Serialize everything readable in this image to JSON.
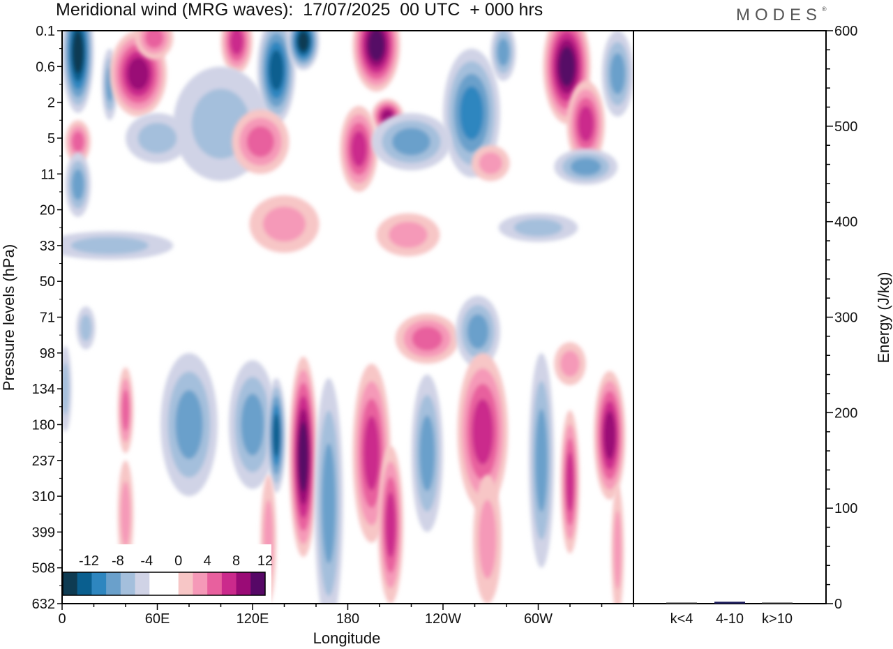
{
  "brand": "MODES",
  "brand_mark": "®",
  "chart_data": {
    "type": "heatmap",
    "title": "Meridional wind (MRG waves):  17/07/2025  00 UTC  + 000 hrs",
    "xlabel": "Longitude",
    "ylabel": "Pressure levels (hPa)",
    "x_tick_labels": [
      "0",
      "60E",
      "120E",
      "180",
      "120W",
      "60W"
    ],
    "x_ticks_deg": [
      0,
      60,
      120,
      180,
      240,
      300
    ],
    "x_range_deg": [
      0,
      360
    ],
    "y_tick_labels": [
      "0.1",
      "0.6",
      "2",
      "5",
      "11",
      "20",
      "33",
      "50",
      "71",
      "98",
      "134",
      "180",
      "237",
      "310",
      "399",
      "508",
      "632"
    ],
    "colorbar": {
      "labels": [
        "-12",
        "-8",
        "-4",
        "0",
        "4",
        "8",
        "12"
      ],
      "colors": [
        "#0e3b52",
        "#0a5f8f",
        "#2e86bf",
        "#6aa0cb",
        "#a4bfdc",
        "#d0d3e6",
        "#ffffff",
        "#ffffff",
        "#f7c6c6",
        "#f599b8",
        "#e8609e",
        "#cb2a8c",
        "#9a0b76",
        "#560866"
      ]
    },
    "energy_axis": {
      "label": "Energy (J/kg)",
      "tick_labels": [
        "0",
        "100",
        "200",
        "300",
        "400",
        "500",
        "600"
      ],
      "ylim": [
        0,
        600
      ],
      "categories": [
        "k<4",
        "4-10",
        "k>10"
      ],
      "values": [
        0.5,
        2,
        0.5
      ]
    },
    "anomalies": [
      {
        "lon": 10,
        "lev": 0.6,
        "rx": 10,
        "ry": 1.7,
        "v": -14
      },
      {
        "lon": 30,
        "lev": 1.5,
        "rx": 5,
        "ry": 1,
        "v": -6
      },
      {
        "lon": 48,
        "lev": 1.2,
        "rx": 18,
        "ry": 1.2,
        "v": 10
      },
      {
        "lon": 58,
        "lev": 0.2,
        "rx": 12,
        "ry": 0.6,
        "v": 6
      },
      {
        "lon": 110,
        "lev": 0.3,
        "rx": 10,
        "ry": 0.9,
        "v": 8
      },
      {
        "lon": 100,
        "lev": 2.6,
        "rx": 30,
        "ry": 1.6,
        "v": -4
      },
      {
        "lon": 135,
        "lev": 1.1,
        "rx": 12,
        "ry": 1.5,
        "v": -12
      },
      {
        "lon": 152,
        "lev": 0.3,
        "rx": 10,
        "ry": 0.8,
        "v": -14
      },
      {
        "lon": 198,
        "lev": 0.4,
        "rx": 15,
        "ry": 1.3,
        "v": 14
      },
      {
        "lon": 205,
        "lev": 2.4,
        "rx": 10,
        "ry": 0.5,
        "v": 12
      },
      {
        "lon": 258,
        "lev": 2.3,
        "rx": 18,
        "ry": 1.8,
        "v": -9
      },
      {
        "lon": 278,
        "lev": 0.6,
        "rx": 8,
        "ry": 0.8,
        "v": -6
      },
      {
        "lon": 318,
        "lev": 1,
        "rx": 15,
        "ry": 1.6,
        "v": 14
      },
      {
        "lon": 330,
        "lev": 2.6,
        "rx": 12,
        "ry": 1.2,
        "v": 8
      },
      {
        "lon": 350,
        "lev": 1.2,
        "rx": 10,
        "ry": 1.2,
        "v": -7
      },
      {
        "lon": 10,
        "lev": 3.1,
        "rx": 8,
        "ry": 0.6,
        "v": 5
      },
      {
        "lon": 60,
        "lev": 3.0,
        "rx": 20,
        "ry": 0.7,
        "v": -4
      },
      {
        "lon": 125,
        "lev": 3.1,
        "rx": 18,
        "ry": 0.9,
        "v": 5
      },
      {
        "lon": 187,
        "lev": 3.3,
        "rx": 12,
        "ry": 1.2,
        "v": 9
      },
      {
        "lon": 220,
        "lev": 3.1,
        "rx": 25,
        "ry": 0.8,
        "v": -5
      },
      {
        "lon": 330,
        "lev": 3.8,
        "rx": 20,
        "ry": 0.5,
        "v": -5
      },
      {
        "lon": 270,
        "lev": 3.7,
        "rx": 12,
        "ry": 0.5,
        "v": 4
      },
      {
        "lon": 10,
        "lev": 4.3,
        "rx": 8,
        "ry": 0.9,
        "v": -5
      },
      {
        "lon": 140,
        "lev": 5.4,
        "rx": 22,
        "ry": 0.8,
        "v": 4
      },
      {
        "lon": 218,
        "lev": 5.7,
        "rx": 20,
        "ry": 0.6,
        "v": 4
      },
      {
        "lon": 300,
        "lev": 5.5,
        "rx": 25,
        "ry": 0.4,
        "v": -4
      },
      {
        "lon": 30,
        "lev": 6.0,
        "rx": 40,
        "ry": 0.4,
        "v": -4
      },
      {
        "lon": 230,
        "lev": 8.6,
        "rx": 20,
        "ry": 0.7,
        "v": 5
      },
      {
        "lon": 262,
        "lev": 8.4,
        "rx": 14,
        "ry": 1.0,
        "v": -6
      },
      {
        "lon": 320,
        "lev": 9.3,
        "rx": 10,
        "ry": 0.6,
        "v": 4
      },
      {
        "lon": 15,
        "lev": 8.3,
        "rx": 6,
        "ry": 0.6,
        "v": -4
      },
      {
        "lon": 2,
        "lev": 10.0,
        "rx": 4,
        "ry": 1.2,
        "v": -4
      },
      {
        "lon": 40,
        "lev": 10.6,
        "rx": 5,
        "ry": 1.2,
        "v": 6
      },
      {
        "lon": 40,
        "lev": 13.5,
        "rx": 5,
        "ry": 1.5,
        "v": 4
      },
      {
        "lon": 80,
        "lev": 11.0,
        "rx": 18,
        "ry": 2.0,
        "v": -5
      },
      {
        "lon": 120,
        "lev": 11.0,
        "rx": 15,
        "ry": 1.8,
        "v": -7
      },
      {
        "lon": 135,
        "lev": 11.3,
        "rx": 6,
        "ry": 1.6,
        "v": -11
      },
      {
        "lon": 130,
        "lev": 14.2,
        "rx": 5,
        "ry": 1.8,
        "v": 4
      },
      {
        "lon": 152,
        "lev": 11.9,
        "rx": 9,
        "ry": 2.8,
        "v": 15
      },
      {
        "lon": 168,
        "lev": 13.2,
        "rx": 9,
        "ry": 3.5,
        "v": -7
      },
      {
        "lon": 195,
        "lev": 11.8,
        "rx": 12,
        "ry": 2.5,
        "v": 8
      },
      {
        "lon": 207,
        "lev": 13.8,
        "rx": 8,
        "ry": 2.2,
        "v": 8
      },
      {
        "lon": 230,
        "lev": 11.8,
        "rx": 10,
        "ry": 2.2,
        "v": -7
      },
      {
        "lon": 265,
        "lev": 11.2,
        "rx": 16,
        "ry": 2.2,
        "v": 8
      },
      {
        "lon": 268,
        "lev": 14.2,
        "rx": 9,
        "ry": 1.8,
        "v": 4
      },
      {
        "lon": 302,
        "lev": 12.0,
        "rx": 8,
        "ry": 3.0,
        "v": -6
      },
      {
        "lon": 320,
        "lev": 12.6,
        "rx": 6,
        "ry": 2.0,
        "v": 8
      },
      {
        "lon": 345,
        "lev": 11.3,
        "rx": 10,
        "ry": 1.8,
        "v": 10
      },
      {
        "lon": 350,
        "lev": 14.5,
        "rx": 4,
        "ry": 1.8,
        "v": 4
      }
    ]
  }
}
